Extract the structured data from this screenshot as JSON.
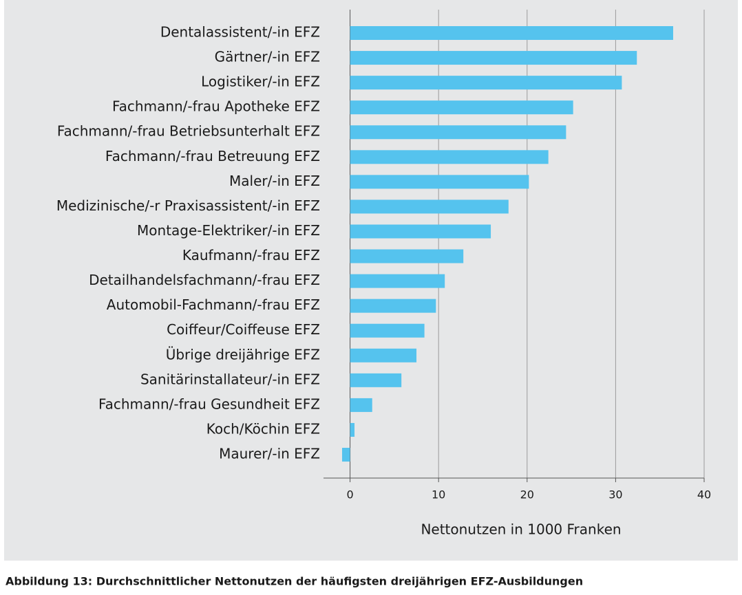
{
  "chart_data": {
    "type": "bar",
    "orientation": "horizontal",
    "categories": [
      "Dentalassistent/-in EFZ",
      "Gärtner/-in EFZ",
      "Logistiker/-in EFZ",
      "Fachmann/-frau Apotheke EFZ",
      "Fachmann/-frau Betriebsunterhalt EFZ",
      "Fachmann/-frau Betreuung EFZ",
      "Maler/-in EFZ",
      "Medizinische/-r Praxisassistent/-in EFZ",
      "Montage-Elektriker/-in EFZ",
      "Kaufmann/-frau EFZ",
      "Detailhandelsfachmann/-frau EFZ",
      "Automobil-Fachmann/-frau EFZ",
      "Coiffeur/Coiffeuse EFZ",
      "Übrige dreijährige EFZ",
      "Sanitärinstallateur/-in EFZ",
      "Fachmann/-frau Gesundheit EFZ",
      "Koch/Köchin EFZ",
      "Maurer/-in EFZ"
    ],
    "values": [
      36.5,
      32.4,
      30.7,
      25.2,
      24.4,
      22.4,
      20.2,
      17.9,
      15.9,
      12.8,
      10.7,
      9.7,
      8.4,
      7.5,
      5.8,
      2.5,
      0.5,
      -0.9
    ],
    "color": "#55c3ee",
    "xlim": [
      -3,
      40
    ],
    "xticks": [
      0,
      10,
      20,
      30,
      40
    ],
    "grid": true,
    "xlabel": "Nettonutzen in 1000 Franken",
    "caption": "Abbildung 13: Durchschnittlicher Nettonutzen der häufigsten dreijährigen EFZ-Ausbildungen"
  }
}
